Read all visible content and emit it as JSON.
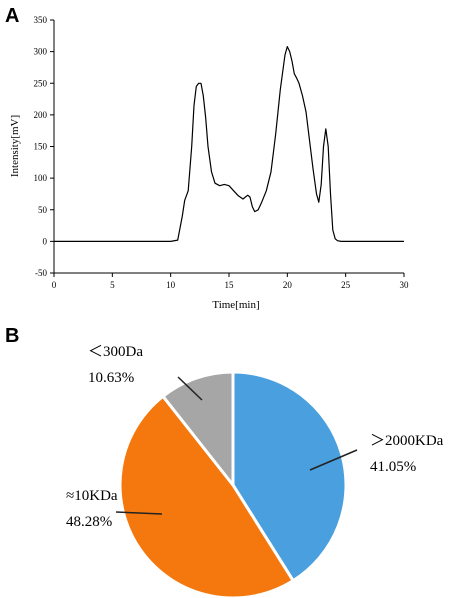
{
  "panel_labels": {
    "a": "A",
    "b": "B"
  },
  "chart_data": [
    {
      "type": "line",
      "panel": "A",
      "xlabel": "Time[min]",
      "ylabel": "Intensity[mV]",
      "xlim": [
        0,
        30
      ],
      "ylim": [
        -50,
        350
      ],
      "xticks": [
        0,
        5,
        10,
        15,
        20,
        25,
        30
      ],
      "yticks": [
        -50,
        0,
        50,
        100,
        150,
        200,
        250,
        300,
        350
      ],
      "grid": false,
      "series": [
        {
          "x": [
            0,
            10,
            10.6,
            11.0,
            11.2,
            11.5,
            11.8,
            12.0,
            12.2,
            12.4,
            12.6,
            12.8,
            13.0,
            13.2,
            13.5,
            13.8,
            14.2,
            14.6,
            15.0,
            15.4,
            15.8,
            16.2,
            16.6,
            16.8,
            17.0,
            17.2,
            17.5,
            17.8,
            18.2,
            18.6,
            19.0,
            19.4,
            19.8,
            20.0,
            20.2,
            20.4,
            20.6,
            20.8,
            21.0,
            21.3,
            21.6,
            21.9,
            22.2,
            22.5,
            22.7,
            22.9,
            23.1,
            23.3,
            23.5,
            23.7,
            23.9,
            24.1,
            24.3,
            24.6,
            25.0,
            30
          ],
          "y": [
            0,
            0,
            2,
            40,
            65,
            80,
            150,
            215,
            245,
            250,
            250,
            230,
            195,
            150,
            110,
            92,
            88,
            90,
            88,
            80,
            72,
            67,
            73,
            70,
            55,
            47,
            50,
            62,
            80,
            110,
            170,
            240,
            295,
            308,
            300,
            285,
            265,
            258,
            250,
            230,
            205,
            160,
            115,
            75,
            62,
            90,
            150,
            178,
            150,
            75,
            18,
            4,
            1,
            0,
            0,
            0
          ]
        }
      ]
    },
    {
      "type": "pie",
      "panel": "B",
      "slices": [
        {
          "label": "＞2000KDa",
          "value": 41.05,
          "value_text": "41.05%",
          "color": "#4a9fde"
        },
        {
          "label": "≈10KDa",
          "value": 48.28,
          "value_text": "48.28%",
          "color": "#f5780f"
        },
        {
          "label": "＜300Da",
          "value": 10.63,
          "value_text": "10.63%",
          "color": "#a6a6a6"
        }
      ]
    }
  ]
}
